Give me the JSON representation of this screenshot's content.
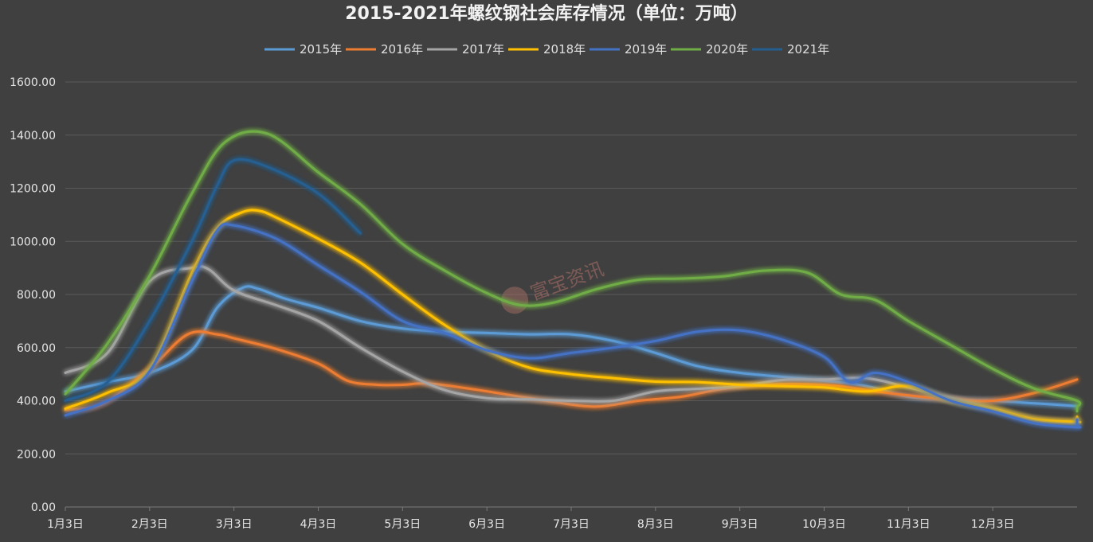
{
  "chart_data": {
    "type": "line",
    "title": "2015-2021年螺纹钢社会库存情况（单位：万吨）",
    "x": [
      "1月3日",
      "2月3日",
      "3月3日",
      "4月3日",
      "5月3日",
      "6月3日",
      "7月3日",
      "8月3日",
      "9月3日",
      "10月3日",
      "11月3日",
      "12月3日"
    ],
    "ylim": [
      0,
      1600
    ],
    "yticks": [
      "0.00",
      "200.00",
      "400.00",
      "600.00",
      "800.00",
      "1000.00",
      "1200.00",
      "1400.00",
      "1600.00"
    ],
    "grid": true,
    "legend_position": "top",
    "series": [
      {
        "name": "2015年",
        "color": "#5b9bd5",
        "points": [
          [
            0,
            435
          ],
          [
            0.5,
            470
          ],
          [
            1,
            505
          ],
          [
            1.5,
            590
          ],
          [
            1.8,
            750
          ],
          [
            2.1,
            825
          ],
          [
            2.3,
            820
          ],
          [
            2.6,
            785
          ],
          [
            3,
            750
          ],
          [
            3.5,
            700
          ],
          [
            4,
            672
          ],
          [
            4.5,
            660
          ],
          [
            5,
            655
          ],
          [
            5.5,
            650
          ],
          [
            6,
            650
          ],
          [
            6.5,
            625
          ],
          [
            7,
            580
          ],
          [
            7.5,
            530
          ],
          [
            8,
            505
          ],
          [
            8.5,
            490
          ],
          [
            9,
            475
          ],
          [
            9.5,
            455
          ],
          [
            10,
            415
          ],
          [
            10.5,
            405
          ],
          [
            11,
            400
          ],
          [
            11.5,
            390
          ],
          [
            12,
            380
          ]
        ]
      },
      {
        "name": "2016年",
        "color": "#ed7d31",
        "points": [
          [
            0,
            365
          ],
          [
            0.45,
            390
          ],
          [
            1,
            520
          ],
          [
            1.45,
            650
          ],
          [
            1.8,
            650
          ],
          [
            2,
            635
          ],
          [
            2.5,
            595
          ],
          [
            3,
            540
          ],
          [
            3.35,
            475
          ],
          [
            3.7,
            460
          ],
          [
            4,
            460
          ],
          [
            4.3,
            465
          ],
          [
            4.8,
            445
          ],
          [
            5.3,
            420
          ],
          [
            5.8,
            395
          ],
          [
            6.3,
            378
          ],
          [
            6.8,
            400
          ],
          [
            7.3,
            415
          ],
          [
            7.8,
            445
          ],
          [
            8.3,
            460
          ],
          [
            8.7,
            463
          ],
          [
            9.2,
            455
          ],
          [
            9.5,
            440
          ],
          [
            10,
            420
          ],
          [
            10.5,
            405
          ],
          [
            11,
            400
          ],
          [
            11.5,
            430
          ],
          [
            12,
            480
          ]
        ]
      },
      {
        "name": "2017年",
        "color": "#a5a5a5",
        "points": [
          [
            0,
            505
          ],
          [
            0.5,
            580
          ],
          [
            1,
            850
          ],
          [
            1.5,
            900
          ],
          [
            1.7,
            895
          ],
          [
            2,
            815
          ],
          [
            2.5,
            760
          ],
          [
            3,
            700
          ],
          [
            3.5,
            600
          ],
          [
            4,
            510
          ],
          [
            4.5,
            440
          ],
          [
            5,
            410
          ],
          [
            5.5,
            405
          ],
          [
            6,
            400
          ],
          [
            6.5,
            400
          ],
          [
            7,
            435
          ],
          [
            7.5,
            445
          ],
          [
            8,
            455
          ],
          [
            8.5,
            478
          ],
          [
            9,
            480
          ],
          [
            9.5,
            485
          ],
          [
            10,
            450
          ],
          [
            10.5,
            410
          ],
          [
            11,
            370
          ],
          [
            11.5,
            330
          ],
          [
            12,
            318
          ]
        ]
      },
      {
        "name": "2018年",
        "color": "#ffc000",
        "points": [
          [
            0,
            370
          ],
          [
            0.5,
            430
          ],
          [
            1,
            520
          ],
          [
            1.5,
            880
          ],
          [
            1.8,
            1050
          ],
          [
            2.1,
            1110
          ],
          [
            2.3,
            1115
          ],
          [
            2.5,
            1090
          ],
          [
            3,
            1010
          ],
          [
            3.5,
            920
          ],
          [
            4,
            800
          ],
          [
            4.5,
            685
          ],
          [
            5,
            590
          ],
          [
            5.5,
            525
          ],
          [
            6,
            500
          ],
          [
            6.5,
            485
          ],
          [
            7,
            472
          ],
          [
            7.5,
            470
          ],
          [
            8,
            460
          ],
          [
            8.5,
            455
          ],
          [
            9,
            450
          ],
          [
            9.5,
            435
          ],
          [
            10,
            455
          ],
          [
            10.5,
            400
          ],
          [
            11,
            370
          ],
          [
            11.5,
            330
          ],
          [
            12,
            320
          ],
          [
            12.5,
            320
          ],
          [
            13,
            325
          ],
          [
            13.3,
            340
          ]
        ]
      },
      {
        "name": "2019年",
        "color": "#4472c4",
        "points": [
          [
            0,
            345
          ],
          [
            0.5,
            400
          ],
          [
            1,
            510
          ],
          [
            1.5,
            850
          ],
          [
            1.8,
            1040
          ],
          [
            2,
            1060
          ],
          [
            2.5,
            1010
          ],
          [
            3,
            910
          ],
          [
            3.5,
            810
          ],
          [
            4,
            700
          ],
          [
            4.5,
            655
          ],
          [
            5,
            590
          ],
          [
            5.5,
            560
          ],
          [
            6,
            580
          ],
          [
            6.5,
            600
          ],
          [
            7,
            625
          ],
          [
            7.5,
            660
          ],
          [
            8,
            665
          ],
          [
            8.5,
            630
          ],
          [
            9,
            565
          ],
          [
            9.3,
            470
          ],
          [
            9.6,
            505
          ],
          [
            10,
            470
          ],
          [
            10.5,
            400
          ],
          [
            11,
            360
          ],
          [
            11.5,
            315
          ],
          [
            12,
            300
          ],
          [
            12.5,
            305
          ],
          [
            13,
            315
          ],
          [
            13.3,
            330
          ]
        ]
      },
      {
        "name": "2020年",
        "color": "#70ad47",
        "points": [
          [
            0,
            425
          ],
          [
            0.5,
            615
          ],
          [
            1,
            870
          ],
          [
            1.5,
            1180
          ],
          [
            1.9,
            1375
          ],
          [
            2.4,
            1405
          ],
          [
            3,
            1260
          ],
          [
            3.5,
            1140
          ],
          [
            4,
            990
          ],
          [
            4.5,
            890
          ],
          [
            5,
            805
          ],
          [
            5.4,
            760
          ],
          [
            5.8,
            770
          ],
          [
            6.3,
            820
          ],
          [
            6.8,
            855
          ],
          [
            7.3,
            860
          ],
          [
            7.8,
            868
          ],
          [
            8.3,
            890
          ],
          [
            8.8,
            882
          ],
          [
            9.2,
            800
          ],
          [
            9.6,
            780
          ],
          [
            10,
            700
          ],
          [
            10.5,
            610
          ],
          [
            11,
            520
          ],
          [
            11.5,
            445
          ],
          [
            12,
            400
          ],
          [
            12.5,
            375
          ],
          [
            13,
            360
          ],
          [
            13.3,
            370
          ]
        ]
      },
      {
        "name": "2021年",
        "color": "#255e91",
        "points": [
          [
            0,
            400
          ],
          [
            0.5,
            470
          ],
          [
            1,
            700
          ],
          [
            1.5,
            1000
          ],
          [
            1.8,
            1210
          ],
          [
            2,
            1305
          ],
          [
            2.4,
            1280
          ],
          [
            3,
            1180
          ],
          [
            3.5,
            1030
          ]
        ]
      }
    ]
  },
  "watermark": {
    "text": "富宝资讯"
  }
}
